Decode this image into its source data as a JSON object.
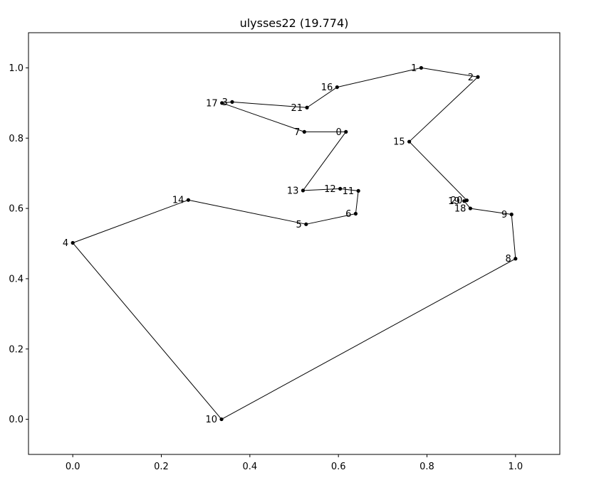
{
  "chart_data": {
    "type": "line",
    "title": "ulysses22 (19.774)",
    "xlabel": "",
    "ylabel": "",
    "xlim": [
      -0.1,
      1.1
    ],
    "ylim": [
      -0.1,
      1.1
    ],
    "grid": false,
    "xticks": [
      0.0,
      0.2,
      0.4,
      0.6,
      0.8,
      1.0
    ],
    "yticks": [
      0.0,
      0.2,
      0.4,
      0.6,
      0.8,
      1.0
    ],
    "xtick_labels": [
      "0.0",
      "0.2",
      "0.4",
      "0.6",
      "0.8",
      "1.0"
    ],
    "ytick_labels": [
      "0.0",
      "0.2",
      "0.4",
      "0.6",
      "0.8",
      "1.0"
    ],
    "colors": {
      "line": "#000000",
      "marker": "#000000",
      "frame": "#000000"
    },
    "nodes": [
      {
        "label": "0",
        "x": 0.617,
        "y": 0.818
      },
      {
        "label": "1",
        "x": 0.787,
        "y": 1.0
      },
      {
        "label": "2",
        "x": 0.915,
        "y": 0.974
      },
      {
        "label": "3",
        "x": 0.36,
        "y": 0.903
      },
      {
        "label": "4",
        "x": 0.0,
        "y": 0.502
      },
      {
        "label": "5",
        "x": 0.527,
        "y": 0.555
      },
      {
        "label": "6",
        "x": 0.639,
        "y": 0.585
      },
      {
        "label": "7",
        "x": 0.523,
        "y": 0.818
      },
      {
        "label": "8",
        "x": 1.0,
        "y": 0.457
      },
      {
        "label": "9",
        "x": 0.991,
        "y": 0.583
      },
      {
        "label": "10",
        "x": 0.336,
        "y": 0.0
      },
      {
        "label": "11",
        "x": 0.645,
        "y": 0.65
      },
      {
        "label": "12",
        "x": 0.604,
        "y": 0.656
      },
      {
        "label": "13",
        "x": 0.52,
        "y": 0.651
      },
      {
        "label": "14",
        "x": 0.261,
        "y": 0.624
      },
      {
        "label": "15",
        "x": 0.76,
        "y": 0.79
      },
      {
        "label": "16",
        "x": 0.597,
        "y": 0.945
      },
      {
        "label": "17",
        "x": 0.337,
        "y": 0.9
      },
      {
        "label": "18",
        "x": 0.898,
        "y": 0.6
      },
      {
        "label": "19",
        "x": 0.884,
        "y": 0.621
      },
      {
        "label": "20",
        "x": 0.89,
        "y": 0.623
      },
      {
        "label": "21",
        "x": 0.529,
        "y": 0.887
      }
    ],
    "tour": [
      0,
      13,
      12,
      11,
      6,
      5,
      14,
      4,
      10,
      8,
      9,
      18,
      19,
      20,
      15,
      2,
      1,
      16,
      21,
      3,
      17,
      7,
      0
    ]
  }
}
